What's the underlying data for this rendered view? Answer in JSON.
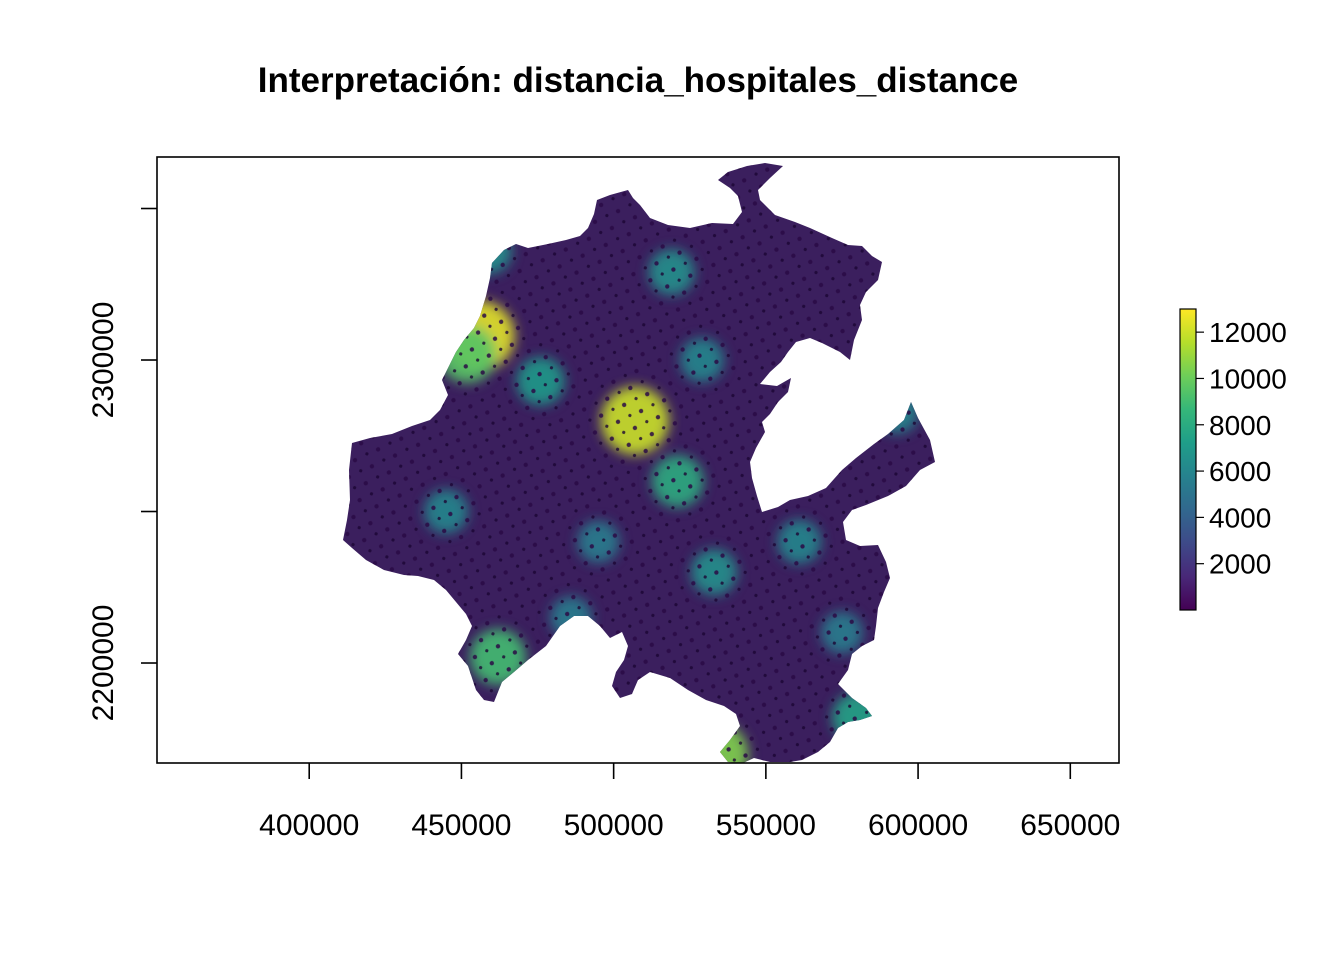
{
  "title": "Interpretación:  distancia_hospitales_distance",
  "chart_data": {
    "type": "heatmap",
    "title": "Interpretación:  distancia_hospitales_distance",
    "xlabel": "",
    "ylabel": "",
    "xlim": [
      350000,
      666000
    ],
    "ylim": [
      2167000,
      2367000
    ],
    "x_ticks": [
      {
        "value": 400000,
        "label": "400000"
      },
      {
        "value": 450000,
        "label": "450000"
      },
      {
        "value": 500000,
        "label": "500000"
      },
      {
        "value": 550000,
        "label": "550000"
      },
      {
        "value": 600000,
        "label": "600000"
      },
      {
        "value": 650000,
        "label": "650000"
      }
    ],
    "y_ticks": [
      {
        "value": 2200000,
        "label": "2200000"
      },
      {
        "value": 2250000,
        "label": ""
      },
      {
        "value": 2300000,
        "label": "2300000"
      },
      {
        "value": 2350000,
        "label": ""
      }
    ],
    "colorbar": {
      "palette": "viridis",
      "min": 0,
      "max": 13000,
      "ticks": [
        {
          "value": 2000,
          "label": "2000"
        },
        {
          "value": 4000,
          "label": "4000"
        },
        {
          "value": 6000,
          "label": "6000"
        },
        {
          "value": 8000,
          "label": "8000"
        },
        {
          "value": 10000,
          "label": "10000"
        },
        {
          "value": 12000,
          "label": "12000"
        }
      ],
      "colors": [
        "#440154",
        "#482878",
        "#3e4a89",
        "#31688e",
        "#26828e",
        "#1f9e89",
        "#35b779",
        "#6ece58",
        "#b5de2b",
        "#fde725"
      ]
    },
    "hotspots": [
      {
        "x": 456000,
        "y": 2308000,
        "value": 12500
      },
      {
        "x": 452000,
        "y": 2302000,
        "value": 9500
      },
      {
        "x": 507000,
        "y": 2280000,
        "value": 12000
      },
      {
        "x": 521000,
        "y": 2260000,
        "value": 8000
      },
      {
        "x": 534000,
        "y": 2170000,
        "value": 10500
      },
      {
        "x": 519000,
        "y": 2329000,
        "value": 6500
      },
      {
        "x": 459000,
        "y": 2336000,
        "value": 6500
      },
      {
        "x": 462000,
        "y": 2202000,
        "value": 9000
      },
      {
        "x": 580000,
        "y": 2182000,
        "value": 7500
      },
      {
        "x": 593000,
        "y": 2283000,
        "value": 6000
      },
      {
        "x": 476000,
        "y": 2293000,
        "value": 7000
      },
      {
        "x": 445000,
        "y": 2250000,
        "value": 6000
      },
      {
        "x": 533000,
        "y": 2230000,
        "value": 6500
      },
      {
        "x": 561000,
        "y": 2240000,
        "value": 6000
      },
      {
        "x": 529000,
        "y": 2300000,
        "value": 6000
      },
      {
        "x": 495000,
        "y": 2240000,
        "value": 5500
      },
      {
        "x": 575000,
        "y": 2210000,
        "value": 5500
      },
      {
        "x": 486000,
        "y": 2215000,
        "value": 5500
      }
    ]
  }
}
